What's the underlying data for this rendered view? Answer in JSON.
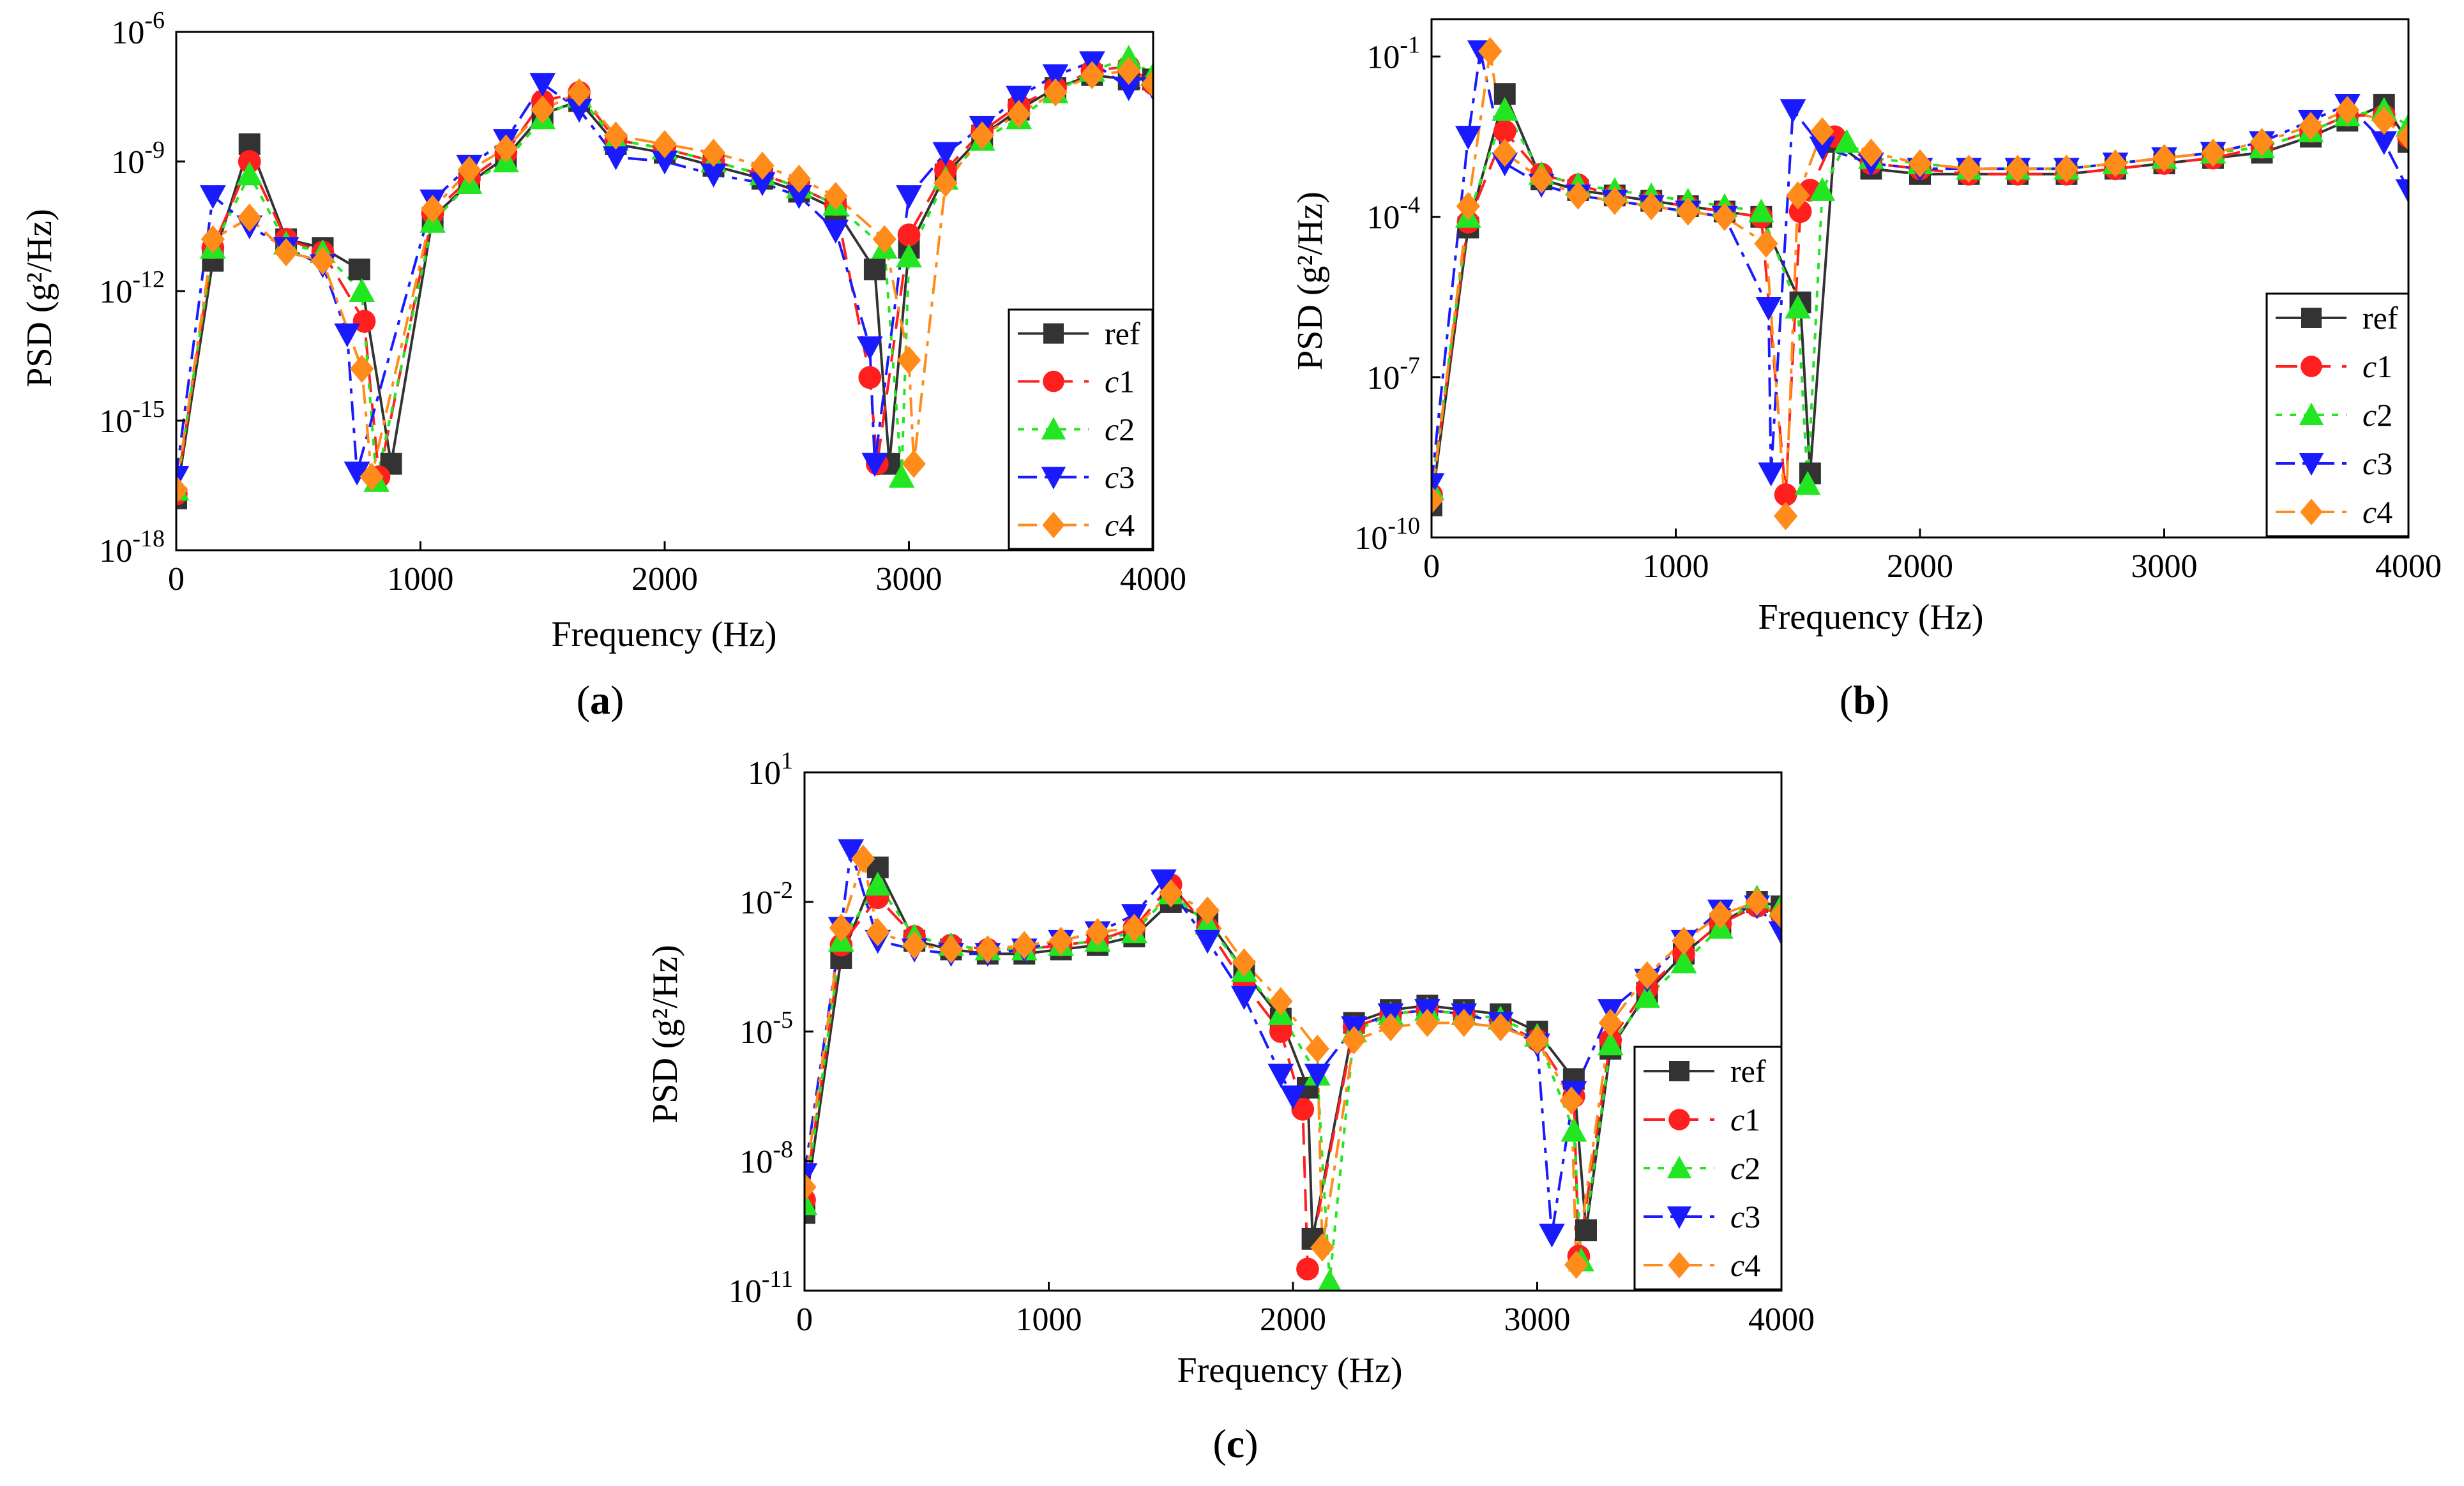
{
  "colors": {
    "ref": "#333333",
    "c1": "#ff1f1f",
    "c2": "#22e622",
    "c3": "#1a1aff",
    "c4": "#ff8c1a"
  },
  "chart_data": [
    {
      "type": "line",
      "panel_label_open": "(",
      "panel_label_letter": "a",
      "panel_label_close": ")",
      "xlabel": "Frequency (Hz)",
      "ylabel": "PSD (g²/Hz)",
      "x_scale": "linear",
      "y_scale": "log",
      "xlim": [
        0,
        4000
      ],
      "ylim_exponent": [
        -18,
        -6
      ],
      "xticks": [
        "0",
        "1000",
        "2000",
        "3000",
        "4000"
      ],
      "yticks_exponent": [
        -18,
        -15,
        -12,
        -9,
        -6
      ],
      "legend_placement": "lower-right",
      "series": [
        {
          "name": "ref",
          "style": "solid",
          "marker": "square",
          "x": [
            0,
            150,
            300,
            450,
            600,
            750,
            880,
            1050,
            1200,
            1350,
            1500,
            1650,
            1800,
            2000,
            2200,
            2400,
            2550,
            2700,
            2860,
            2920,
            3000,
            3150,
            3300,
            3450,
            3600,
            3750,
            3900,
            4000
          ],
          "y": [
            -16.8,
            -11.3,
            -8.6,
            -10.8,
            -11.0,
            -11.5,
            -16.0,
            -10.3,
            -9.5,
            -8.9,
            -7.9,
            -7.6,
            -8.6,
            -8.8,
            -9.1,
            -9.4,
            -9.7,
            -10.1,
            -11.5,
            -16.0,
            -11.0,
            -9.3,
            -8.4,
            -7.8,
            -7.3,
            -7.0,
            -7.1,
            -7.1
          ]
        },
        {
          "name": "c1",
          "style": "dashed",
          "marker": "circle",
          "x": [
            0,
            150,
            300,
            450,
            600,
            770,
            830,
            1050,
            1200,
            1350,
            1500,
            1650,
            1800,
            2000,
            2200,
            2400,
            2550,
            2700,
            2840,
            2870,
            3000,
            3150,
            3300,
            3450,
            3600,
            3750,
            3900,
            4000
          ],
          "y": [
            -16.7,
            -11.0,
            -9.0,
            -10.8,
            -11.1,
            -12.7,
            -16.3,
            -10.2,
            -9.4,
            -8.8,
            -7.6,
            -7.4,
            -8.5,
            -8.7,
            -9.0,
            -9.3,
            -9.6,
            -10.0,
            -14.0,
            -16.0,
            -10.7,
            -9.2,
            -8.3,
            -7.7,
            -7.3,
            -6.9,
            -6.8,
            -7.2
          ]
        },
        {
          "name": "c2",
          "style": "dotted",
          "marker": "triangle",
          "x": [
            0,
            150,
            300,
            450,
            600,
            760,
            820,
            1050,
            1200,
            1350,
            1500,
            1650,
            1800,
            2000,
            2200,
            2400,
            2550,
            2700,
            2900,
            2970,
            3000,
            3150,
            3300,
            3450,
            3600,
            3750,
            3900,
            4000
          ],
          "y": [
            -16.6,
            -11.0,
            -9.3,
            -10.9,
            -11.1,
            -12.0,
            -16.4,
            -10.4,
            -9.5,
            -9.0,
            -8.0,
            -7.5,
            -8.5,
            -8.7,
            -9.0,
            -9.3,
            -9.6,
            -10.0,
            -11.0,
            -16.3,
            -11.2,
            -9.4,
            -8.5,
            -8.0,
            -7.4,
            -6.9,
            -6.6,
            -7.0
          ]
        },
        {
          "name": "c3",
          "style": "dashdot",
          "marker": "triangle-down",
          "x": [
            0,
            150,
            300,
            450,
            600,
            700,
            740,
            1050,
            1200,
            1350,
            1500,
            1650,
            1800,
            2000,
            2200,
            2400,
            2550,
            2700,
            2840,
            2860,
            3000,
            3150,
            3300,
            3450,
            3600,
            3750,
            3900,
            4000
          ],
          "y": [
            -16.3,
            -9.8,
            -10.5,
            -11.0,
            -11.4,
            -13.0,
            -16.2,
            -9.9,
            -9.1,
            -8.5,
            -7.2,
            -7.8,
            -8.9,
            -9.0,
            -9.3,
            -9.5,
            -9.8,
            -10.6,
            -13.3,
            -16.0,
            -9.8,
            -8.8,
            -8.2,
            -7.5,
            -7.0,
            -6.7,
            -7.3,
            -7.3
          ]
        },
        {
          "name": "c4",
          "style": "dashdot",
          "marker": "diamond",
          "x": [
            0,
            150,
            300,
            450,
            600,
            760,
            800,
            1050,
            1200,
            1350,
            1500,
            1650,
            1800,
            2000,
            2200,
            2400,
            2550,
            2700,
            2900,
            3000,
            3020,
            3150,
            3300,
            3450,
            3600,
            3750,
            3900,
            4000
          ],
          "y": [
            -16.6,
            -10.8,
            -10.3,
            -11.1,
            -11.3,
            -13.8,
            -16.3,
            -10.1,
            -9.2,
            -8.7,
            -7.8,
            -7.4,
            -8.4,
            -8.6,
            -8.8,
            -9.1,
            -9.4,
            -9.8,
            -10.8,
            -13.6,
            -16.0,
            -9.5,
            -8.4,
            -7.9,
            -7.4,
            -7.0,
            -6.9,
            -7.2
          ]
        }
      ]
    },
    {
      "type": "line",
      "panel_label_open": "(",
      "panel_label_letter": "b",
      "panel_label_close": ")",
      "xlabel": "Frequency (Hz)",
      "ylabel": "PSD (g²/Hz)",
      "x_scale": "linear",
      "y_scale": "log",
      "xlim": [
        0,
        4000
      ],
      "ylim_exponent": [
        -10,
        -0.3
      ],
      "xticks": [
        "0",
        "1000",
        "2000",
        "3000",
        "4000"
      ],
      "yticks_exponent": [
        -10,
        -7,
        -4,
        -1
      ],
      "legend_placement": "lower-right",
      "series": [
        {
          "name": "ref",
          "style": "solid",
          "marker": "square",
          "x": [
            0,
            150,
            300,
            450,
            600,
            750,
            900,
            1050,
            1200,
            1350,
            1510,
            1550,
            1650,
            1800,
            2000,
            2200,
            2400,
            2600,
            2800,
            3000,
            3200,
            3400,
            3600,
            3750,
            3900,
            4000
          ],
          "y": [
            -9.4,
            -4.2,
            -1.7,
            -3.3,
            -3.5,
            -3.6,
            -3.7,
            -3.8,
            -3.9,
            -4.0,
            -5.6,
            -8.8,
            -2.6,
            -3.1,
            -3.2,
            -3.2,
            -3.2,
            -3.2,
            -3.1,
            -3.0,
            -2.9,
            -2.8,
            -2.5,
            -2.2,
            -1.9,
            -2.6
          ]
        },
        {
          "name": "c1",
          "style": "dashed",
          "marker": "circle",
          "x": [
            0,
            150,
            300,
            450,
            600,
            750,
            900,
            1050,
            1200,
            1350,
            1450,
            1510,
            1550,
            1650,
            1800,
            2000,
            2200,
            2400,
            2600,
            2800,
            3000,
            3200,
            3400,
            3600,
            3750,
            3900,
            4000
          ],
          "y": [
            -9.2,
            -4.1,
            -2.4,
            -3.2,
            -3.4,
            -3.6,
            -3.7,
            -3.8,
            -3.9,
            -4.0,
            -9.2,
            -3.9,
            -3.5,
            -2.5,
            -3.0,
            -3.1,
            -3.2,
            -3.2,
            -3.2,
            -3.1,
            -3.0,
            -2.9,
            -2.7,
            -2.4,
            -2.1,
            -2.1,
            -2.5
          ]
        },
        {
          "name": "c2",
          "style": "dotted",
          "marker": "triangle",
          "x": [
            0,
            150,
            300,
            450,
            600,
            750,
            900,
            1050,
            1200,
            1350,
            1500,
            1540,
            1600,
            1700,
            1800,
            2000,
            2200,
            2400,
            2600,
            2800,
            3000,
            3200,
            3400,
            3600,
            3750,
            3900,
            4000
          ],
          "y": [
            -9.1,
            -4.0,
            -2.0,
            -3.2,
            -3.4,
            -3.5,
            -3.6,
            -3.7,
            -3.8,
            -3.9,
            -5.7,
            -9.0,
            -3.5,
            -2.6,
            -2.9,
            -3.0,
            -3.1,
            -3.1,
            -3.1,
            -3.0,
            -2.9,
            -2.8,
            -2.7,
            -2.4,
            -2.1,
            -2.0,
            -2.3
          ]
        },
        {
          "name": "c3",
          "style": "dashdot",
          "marker": "triangle-down",
          "x": [
            0,
            150,
            200,
            300,
            450,
            600,
            750,
            900,
            1050,
            1200,
            1380,
            1390,
            1480,
            1600,
            1800,
            2000,
            2200,
            2400,
            2600,
            2800,
            3000,
            3200,
            3400,
            3600,
            3750,
            3900,
            4000
          ],
          "y": [
            -9.0,
            -2.5,
            -0.9,
            -3.0,
            -3.4,
            -3.6,
            -3.7,
            -3.8,
            -3.9,
            -4.0,
            -5.7,
            -8.8,
            -2.0,
            -2.7,
            -3.0,
            -3.1,
            -3.1,
            -3.1,
            -3.1,
            -3.0,
            -2.9,
            -2.8,
            -2.6,
            -2.2,
            -1.9,
            -2.6,
            -3.5
          ]
        },
        {
          "name": "c4",
          "style": "dashdot",
          "marker": "diamond",
          "x": [
            0,
            150,
            240,
            300,
            450,
            600,
            750,
            900,
            1050,
            1200,
            1370,
            1450,
            1500,
            1600,
            1800,
            2000,
            2200,
            2400,
            2600,
            2800,
            3000,
            3200,
            3400,
            3600,
            3750,
            3900,
            4000
          ],
          "y": [
            -9.3,
            -3.8,
            -0.9,
            -2.8,
            -3.3,
            -3.6,
            -3.7,
            -3.8,
            -3.9,
            -4.0,
            -4.5,
            -9.6,
            -3.6,
            -2.4,
            -2.8,
            -3.0,
            -3.1,
            -3.1,
            -3.1,
            -3.0,
            -2.9,
            -2.8,
            -2.6,
            -2.3,
            -2.0,
            -2.2,
            -2.5
          ]
        }
      ]
    },
    {
      "type": "line",
      "panel_label_open": "(",
      "panel_label_letter": "c",
      "panel_label_close": ")",
      "xlabel": "Frequency (Hz)",
      "ylabel": "PSD (g²/Hz)",
      "x_scale": "linear",
      "y_scale": "log",
      "xlim": [
        0,
        4000
      ],
      "ylim_exponent": [
        -11,
        1
      ],
      "xticks": [
        "0",
        "1000",
        "2000",
        "3000",
        "4000"
      ],
      "yticks_exponent": [
        -11,
        -8,
        -5,
        -2,
        1
      ],
      "legend_placement": "lower-right",
      "series": [
        {
          "name": "ref",
          "style": "solid",
          "marker": "square",
          "x": [
            0,
            150,
            300,
            450,
            600,
            750,
            900,
            1050,
            1200,
            1350,
            1500,
            1650,
            1800,
            1950,
            2060,
            2080,
            2250,
            2400,
            2550,
            2700,
            2850,
            3000,
            3150,
            3200,
            3300,
            3450,
            3600,
            3750,
            3900,
            4000
          ],
          "y": [
            -9.2,
            -3.3,
            -1.2,
            -2.9,
            -3.1,
            -3.2,
            -3.2,
            -3.1,
            -3.0,
            -2.8,
            -2.0,
            -2.4,
            -3.6,
            -4.7,
            -6.3,
            -9.8,
            -4.8,
            -4.5,
            -4.4,
            -4.5,
            -4.6,
            -5.0,
            -6.1,
            -9.6,
            -5.4,
            -4.1,
            -3.2,
            -2.5,
            -2.0,
            -2.1
          ]
        },
        {
          "name": "c1",
          "style": "dashed",
          "marker": "circle",
          "x": [
            0,
            150,
            300,
            450,
            600,
            750,
            900,
            1050,
            1200,
            1350,
            1500,
            1650,
            1800,
            1950,
            2040,
            2060,
            2250,
            2400,
            2550,
            2700,
            2850,
            3000,
            3150,
            3170,
            3300,
            3450,
            3600,
            3750,
            3900,
            4000
          ],
          "y": [
            -8.9,
            -3.0,
            -1.9,
            -2.8,
            -3.0,
            -3.1,
            -3.1,
            -3.0,
            -2.9,
            -2.6,
            -1.6,
            -2.6,
            -3.9,
            -5.0,
            -6.8,
            -10.5,
            -4.9,
            -4.6,
            -4.5,
            -4.6,
            -4.8,
            -5.2,
            -6.5,
            -10.2,
            -5.2,
            -4.0,
            -3.2,
            -2.5,
            -2.1,
            -2.3
          ]
        },
        {
          "name": "c2",
          "style": "dotted",
          "marker": "triangle",
          "x": [
            0,
            150,
            300,
            450,
            600,
            750,
            900,
            1050,
            1200,
            1350,
            1500,
            1650,
            1800,
            1950,
            2100,
            2150,
            2250,
            2400,
            2550,
            2700,
            2850,
            3000,
            3150,
            3180,
            3300,
            3450,
            3600,
            3750,
            3900,
            4000
          ],
          "y": [
            -9.0,
            -2.9,
            -1.6,
            -2.8,
            -3.0,
            -3.1,
            -3.1,
            -3.0,
            -2.9,
            -2.7,
            -1.8,
            -2.5,
            -3.6,
            -4.6,
            -6.0,
            -10.8,
            -5.0,
            -4.6,
            -4.5,
            -4.6,
            -4.7,
            -5.1,
            -7.3,
            -10.3,
            -5.3,
            -4.2,
            -3.4,
            -2.6,
            -1.9,
            -2.1
          ]
        },
        {
          "name": "c3",
          "style": "dashdot",
          "marker": "triangle-down",
          "x": [
            0,
            150,
            190,
            300,
            450,
            600,
            750,
            900,
            1050,
            1200,
            1350,
            1470,
            1650,
            1800,
            1950,
            2000,
            2100,
            2250,
            2400,
            2550,
            2700,
            2850,
            3000,
            3060,
            3150,
            3300,
            3450,
            3600,
            3750,
            3900,
            4000
          ],
          "y": [
            -8.3,
            -2.6,
            -0.8,
            -2.9,
            -3.1,
            -3.2,
            -3.2,
            -3.1,
            -2.9,
            -2.7,
            -2.3,
            -1.5,
            -2.9,
            -4.2,
            -6.0,
            -6.5,
            -6.0,
            -4.9,
            -4.6,
            -4.5,
            -4.6,
            -4.8,
            -5.3,
            -9.7,
            -6.4,
            -4.5,
            -3.8,
            -2.9,
            -2.2,
            -2.1,
            -2.7
          ]
        },
        {
          "name": "c4",
          "style": "dashdot",
          "marker": "diamond",
          "x": [
            0,
            150,
            240,
            300,
            450,
            600,
            750,
            900,
            1050,
            1200,
            1350,
            1500,
            1650,
            1800,
            1950,
            2100,
            2120,
            2250,
            2400,
            2550,
            2700,
            2850,
            3000,
            3140,
            3160,
            3300,
            3450,
            3600,
            3750,
            3900,
            4000
          ],
          "y": [
            -8.6,
            -2.6,
            -1.0,
            -2.7,
            -3.0,
            -3.1,
            -3.1,
            -3.0,
            -2.9,
            -2.7,
            -2.6,
            -1.8,
            -2.2,
            -3.4,
            -4.3,
            -5.4,
            -10.0,
            -5.2,
            -4.9,
            -4.8,
            -4.8,
            -4.9,
            -5.2,
            -6.6,
            -10.4,
            -4.8,
            -3.7,
            -2.9,
            -2.3,
            -2.0,
            -2.3
          ]
        }
      ]
    }
  ]
}
